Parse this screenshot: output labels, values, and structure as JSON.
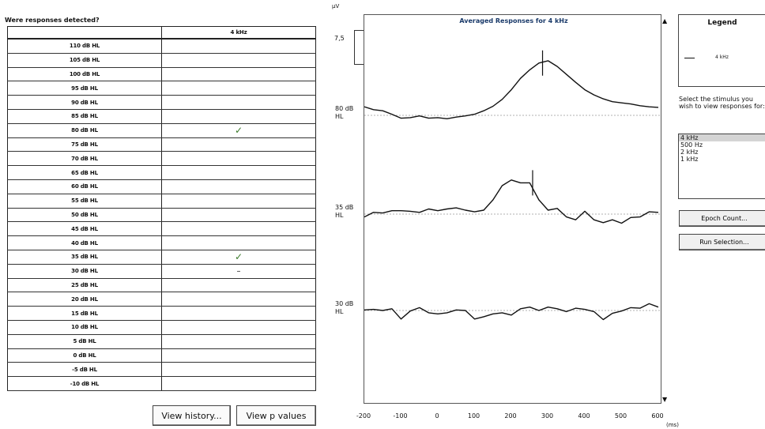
{
  "question": "Were responses detected?",
  "table": {
    "header": "4 kHz",
    "rows": [
      {
        "level": "110 dB HL",
        "result": ""
      },
      {
        "level": "105 dB HL",
        "result": ""
      },
      {
        "level": "100 dB HL",
        "result": ""
      },
      {
        "level": "95 dB HL",
        "result": ""
      },
      {
        "level": "90 dB HL",
        "result": ""
      },
      {
        "level": "85 dB HL",
        "result": ""
      },
      {
        "level": "80 dB HL",
        "result": "✓"
      },
      {
        "level": "75 dB HL",
        "result": ""
      },
      {
        "level": "70 dB HL",
        "result": ""
      },
      {
        "level": "65 dB HL",
        "result": ""
      },
      {
        "level": "60 dB HL",
        "result": ""
      },
      {
        "level": "55 dB HL",
        "result": ""
      },
      {
        "level": "50 dB HL",
        "result": ""
      },
      {
        "level": "45 dB HL",
        "result": ""
      },
      {
        "level": "40 dB HL",
        "result": ""
      },
      {
        "level": "35 dB HL",
        "result": "✓"
      },
      {
        "level": "30 dB HL",
        "result": "–"
      },
      {
        "level": "25 dB HL",
        "result": ""
      },
      {
        "level": "20 dB HL",
        "result": ""
      },
      {
        "level": "15 dB HL",
        "result": ""
      },
      {
        "level": "10 dB HL",
        "result": ""
      },
      {
        "level": "5 dB HL",
        "result": ""
      },
      {
        "level": "0 dB HL",
        "result": ""
      },
      {
        "level": "-5 dB HL",
        "result": ""
      },
      {
        "level": "-10 dB HL",
        "result": ""
      }
    ]
  },
  "buttons": {
    "view_history": "View history...",
    "view_p_values": "View p values",
    "epoch_count": "Epoch Count...",
    "run_selection": "Run Selection..."
  },
  "legend": {
    "title": "Legend",
    "entry": "4 kHz"
  },
  "instruction": "Select the stimulus you wish to view responses for:",
  "stimulus_list": {
    "items": [
      "4 kHz",
      "500 Hz",
      "2 kHz",
      "1 kHz"
    ],
    "selected": "4 kHz"
  },
  "icons": [
    "scroll-up-arrow-icon",
    "scroll-down-arrow-icon"
  ],
  "colors": {
    "check": "#3a7a2a",
    "title": "#1a3a6a",
    "selection": "#d4d4d4"
  },
  "chart_data": {
    "type": "line",
    "title": "Averaged Responses for 4 kHz",
    "y_unit": "µV",
    "scale_label": "7,5",
    "xlabel": "(ms)",
    "xlim": [
      -200,
      600
    ],
    "x_ticks": [
      "-200",
      "-100",
      "0",
      "100",
      "200",
      "300",
      "400",
      "500",
      "600"
    ],
    "series": [
      {
        "name": "80 dB HL",
        "label_lines": [
          "80 dB",
          "HL"
        ],
        "marker_x": 285,
        "x": [
          -200,
          -175,
          -150,
          -125,
          -100,
          -75,
          -50,
          -25,
          0,
          25,
          50,
          75,
          100,
          125,
          150,
          175,
          200,
          225,
          250,
          275,
          300,
          325,
          350,
          375,
          400,
          425,
          450,
          475,
          500,
          525,
          550,
          575,
          600
        ],
        "y": [
          1.5,
          1.0,
          0.8,
          0.2,
          -0.5,
          -0.4,
          -0.1,
          -0.5,
          -0.4,
          -0.6,
          -0.3,
          -0.1,
          0.2,
          0.8,
          1.6,
          2.8,
          4.5,
          6.5,
          8.0,
          9.2,
          9.6,
          8.6,
          7.2,
          5.8,
          4.5,
          3.6,
          2.9,
          2.4,
          2.2,
          2.0,
          1.7,
          1.5,
          1.4
        ]
      },
      {
        "name": "35 dB HL",
        "label_lines": [
          "35 dB",
          "HL"
        ],
        "marker_x": 258,
        "x": [
          -200,
          -175,
          -150,
          -125,
          -100,
          -75,
          -50,
          -25,
          0,
          25,
          50,
          75,
          100,
          125,
          150,
          175,
          200,
          225,
          250,
          275,
          300,
          325,
          350,
          375,
          400,
          425,
          450,
          475,
          500,
          525,
          550,
          575,
          600
        ],
        "y": [
          -0.5,
          0.3,
          0.2,
          0.6,
          0.6,
          0.5,
          0.3,
          0.9,
          0.6,
          0.9,
          1.1,
          0.7,
          0.4,
          0.7,
          2.5,
          5.0,
          6.0,
          5.5,
          5.5,
          2.5,
          0.7,
          1.0,
          -0.5,
          -1.0,
          0.5,
          -1.0,
          -1.5,
          -1.0,
          -1.6,
          -0.6,
          -0.5,
          0.4,
          0.3
        ]
      },
      {
        "name": "30 dB HL",
        "label_lines": [
          "30 dB",
          "HL"
        ],
        "marker_x": null,
        "x": [
          -200,
          -175,
          -150,
          -125,
          -100,
          -75,
          -50,
          -25,
          0,
          25,
          50,
          75,
          100,
          125,
          150,
          175,
          200,
          225,
          250,
          275,
          300,
          325,
          350,
          375,
          400,
          425,
          450,
          475,
          500,
          525,
          550,
          575,
          600
        ],
        "y": [
          0.1,
          0.2,
          0.0,
          0.3,
          -1.5,
          -0.1,
          0.5,
          -0.4,
          -0.6,
          -0.4,
          0.1,
          0.0,
          -1.5,
          -1.1,
          -0.6,
          -0.4,
          -0.8,
          0.3,
          0.6,
          0.0,
          0.6,
          0.3,
          -0.2,
          0.4,
          0.2,
          -0.2,
          -1.6,
          -0.5,
          -0.1,
          0.5,
          0.4,
          1.2,
          0.6
        ]
      }
    ]
  }
}
